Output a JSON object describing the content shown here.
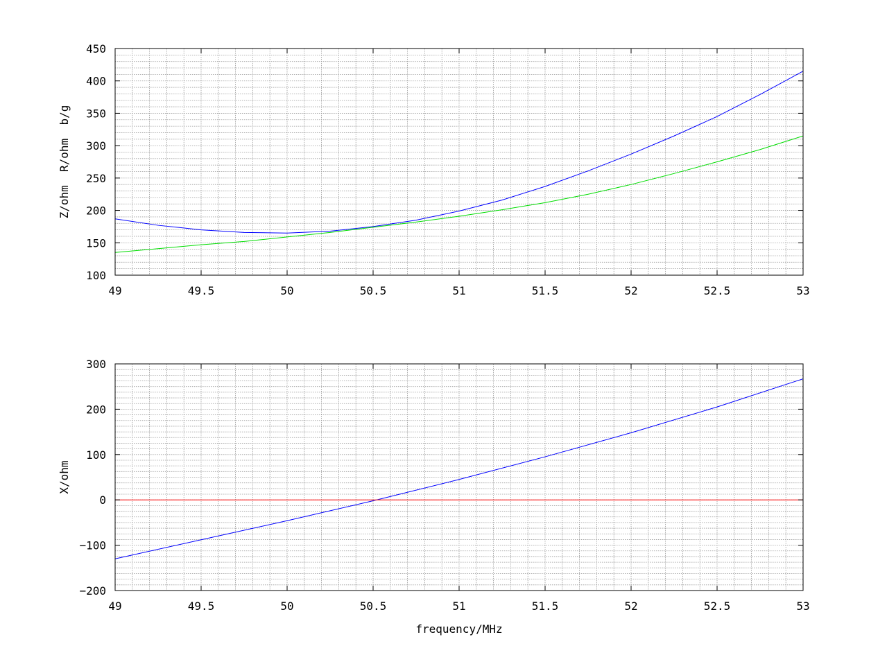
{
  "chart_data": [
    {
      "type": "line",
      "xlabel": "",
      "ylabel": "Z/ohm  R/ohm  b/g",
      "xlim": [
        49,
        53
      ],
      "ylim": [
        100,
        450
      ],
      "xticks": [
        "49",
        "49.5",
        "50",
        "50.5",
        "51",
        "51.5",
        "52",
        "52.5",
        "53"
      ],
      "yticks": [
        "100",
        "150",
        "200",
        "250",
        "300",
        "350",
        "400",
        "450"
      ],
      "grid": true,
      "series": [
        {
          "color": "#0000ff",
          "x": [
            49.0,
            49.25,
            49.5,
            49.75,
            50.0,
            50.25,
            50.5,
            50.75,
            51.0,
            51.25,
            51.5,
            51.75,
            52.0,
            52.25,
            52.5,
            52.75,
            53.0
          ],
          "y": [
            187,
            177,
            170,
            166,
            165,
            168,
            175,
            185,
            199,
            216,
            237,
            261,
            287,
            315,
            345,
            379,
            415
          ]
        },
        {
          "color": "#00dd00",
          "x": [
            49.0,
            49.25,
            49.5,
            49.75,
            50.0,
            50.25,
            50.5,
            50.75,
            51.0,
            51.25,
            51.5,
            51.75,
            52.0,
            52.25,
            52.5,
            52.75,
            53.0
          ],
          "y": [
            135,
            141,
            147,
            152,
            159,
            166,
            174,
            182,
            191,
            201,
            212,
            225,
            240,
            257,
            275,
            294,
            315
          ]
        }
      ]
    },
    {
      "type": "line",
      "xlabel": "frequency/MHz",
      "ylabel": "X/ohm",
      "xlim": [
        49,
        53
      ],
      "ylim": [
        -200,
        300
      ],
      "xticks": [
        "49",
        "49.5",
        "50",
        "50.5",
        "51",
        "51.5",
        "52",
        "52.5",
        "53"
      ],
      "yticks": [
        "−200",
        "−100",
        "0",
        "100",
        "200",
        "300"
      ],
      "grid": true,
      "series": [
        {
          "color": "#0000ff",
          "x": [
            49.0,
            49.5,
            50.0,
            50.5,
            51.0,
            51.5,
            52.0,
            52.5,
            53.0
          ],
          "y": [
            -130,
            -88,
            -46,
            -2,
            45,
            95,
            148,
            205,
            267
          ]
        },
        {
          "color": "#ff0000",
          "x": [
            49.0,
            53.0
          ],
          "y": [
            0,
            0
          ]
        }
      ]
    }
  ]
}
